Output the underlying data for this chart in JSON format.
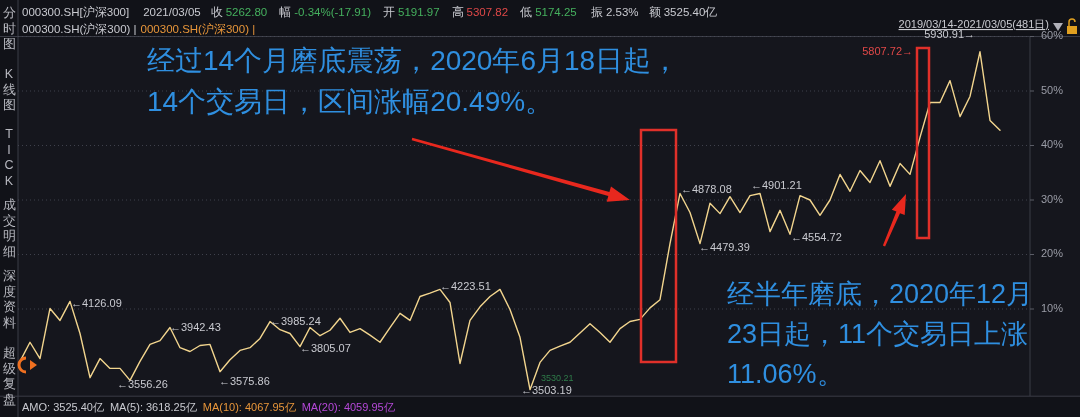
{
  "chart_data": {
    "type": "line",
    "tick_labels": "y",
    "grid": "y",
    "ylim": [
      -6,
      60
    ],
    "yticks": [
      {
        "value": 10,
        "label": "10%"
      },
      {
        "value": 20,
        "label": "20%"
      },
      {
        "value": 30,
        "label": "30%"
      },
      {
        "value": 40,
        "label": "40%"
      },
      {
        "value": 50,
        "label": "50%"
      },
      {
        "value": 60,
        "label": "60%"
      }
    ],
    "categories": [
      null,
      null,
      null,
      null,
      null,
      null,
      null,
      null,
      null,
      null,
      null,
      null,
      null,
      null,
      null,
      null,
      null,
      null,
      null,
      null,
      null,
      null,
      null,
      null,
      null,
      null,
      null,
      null,
      null,
      null,
      null,
      null,
      null,
      null,
      null,
      null,
      null,
      null,
      null,
      null,
      null,
      null,
      null,
      null,
      null,
      null,
      null,
      null,
      null,
      null,
      null,
      null,
      null,
      null,
      null,
      null,
      null,
      null,
      null,
      null,
      null,
      null,
      null,
      null,
      null,
      null,
      null,
      null,
      null,
      null,
      null,
      null,
      null,
      null,
      null,
      null,
      null,
      null,
      null,
      null,
      null,
      null,
      null,
      null,
      null,
      null,
      null,
      null,
      null,
      null,
      null,
      null,
      null,
      null,
      null,
      null,
      null,
      null,
      null
    ],
    "series": [
      {
        "color": "#f2d58e",
        "values": [
          0.4,
          3.9,
          0.9,
          10.1,
          7.9,
          11.4,
          5.5,
          -2.6,
          0.9,
          -0.9,
          -0.9,
          -3.1,
          0.4,
          3.5,
          4.2,
          6.6,
          2.9,
          2.2,
          3.3,
          3.5,
          -1.5,
          0.7,
          2.4,
          2.9,
          4.6,
          7.7,
          6.2,
          5.5,
          3.1,
          6.6,
          5.1,
          6.1,
          8.3,
          5.7,
          6.4,
          5.2,
          3.9,
          6.6,
          9.2,
          7.9,
          12.3,
          12.9,
          13.6,
          11.2,
          0,
          7.9,
          10.4,
          12.3,
          13.6,
          9.9,
          4.8,
          -4.8,
          0.2,
          2.4,
          3.2,
          3.9,
          5.6,
          7.3,
          5.7,
          3.9,
          6.4,
          7.7,
          8.1,
          10.2,
          11.7,
          22.0,
          31.2,
          27.7,
          22.0,
          29.4,
          27.5,
          30.6,
          27.7,
          30.8,
          31.2,
          24.2,
          28.1,
          23.7,
          30.8,
          30.0,
          27.2,
          30.0,
          34.7,
          31.6,
          35.4,
          33.2,
          37.2,
          32.5,
          36.7,
          34.7,
          41.5,
          47.9,
          47.9,
          51.9,
          45.3,
          49.0,
          57.2,
          44.6,
          42.8
        ]
      }
    ],
    "annotations": [
      "000300.SH[沪深300]",
      "2021/03/05",
      "收",
      "5262.80",
      "幅",
      "-0.34%(-17.91)",
      "开",
      "5191.97",
      "高",
      "5307.82",
      "低",
      "5174.25",
      "振 2.53%",
      "额 3525.40亿",
      "000300.SH(沪深300) |",
      "000300.SH(沪深300) |",
      "2019/03/14-2021/03/05(481日)",
      "分时图",
      "K线图",
      "TICK",
      "成交明细",
      "深度资料",
      "超级复盘",
      "AMO: 3525.40亿",
      "MA(5): 3618.25亿",
      "MA(10): 4067.95亿",
      "MA(20): 4059.95亿",
      "经过14个月磨底震荡，2020年6月18日起，",
      "14个交易日，区间涨幅20.49%。",
      "经半年磨底，2020年12月",
      "23日起，11个交易日上涨",
      "11.06%。",
      "3530.21",
      "←4126.09",
      "←3556.26",
      "←3942.43",
      "←3575.86",
      "←3985.24",
      "←3805.07",
      "←4223.51",
      "←3503.19",
      "←4878.08",
      "←4479.39",
      "←4901.21",
      "←4554.72",
      "5930.91→",
      "5807.72→"
    ]
  }
}
